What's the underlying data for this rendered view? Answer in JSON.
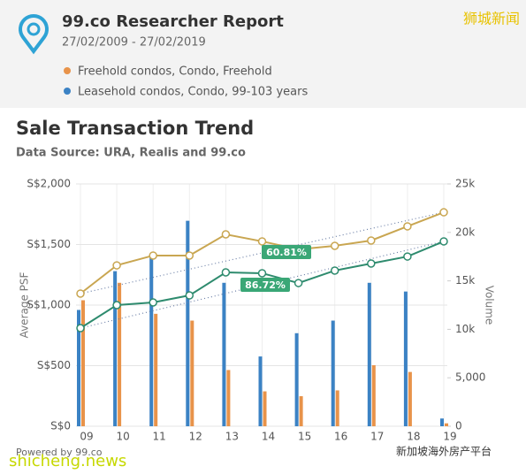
{
  "header": {
    "title": "99.co Researcher Report",
    "date_range": "27/02/2009 - 27/02/2019"
  },
  "watermark": "狮城新闻",
  "footer": {
    "powered_by": "Powered by 99.co",
    "site": "shicheng.news",
    "platform": "新加坡海外房产平台"
  },
  "chart_data": {
    "type": "bar_line",
    "title": "Sale Transaction Trend",
    "subtitle": "Data Source: URA, Realis and 99.co",
    "y_label": "Average PSF",
    "y2_label": "Volume",
    "categories": [
      "09",
      "10",
      "11",
      "12",
      "13",
      "14",
      "15",
      "16",
      "17",
      "18",
      "19"
    ],
    "series": [
      {
        "name": "Freehold condos, Condo, Freehold",
        "color": "#e8934a",
        "line_color": "#c9a651",
        "values": [
          1095,
          1328,
          1409,
          1409,
          1584,
          1526,
          1460,
          1489,
          1533,
          1650,
          1766
        ],
        "volume": [
          13000,
          14800,
          11600,
          10900,
          5800,
          3600,
          3100,
          3700,
          6300,
          5600,
          300
        ]
      },
      {
        "name": "Leasehold condos, Condo, 99-103 years",
        "color": "#3b82c4",
        "line_color": "#2e8b6e",
        "values": [
          810,
          1000,
          1022,
          1080,
          1270,
          1263,
          1182,
          1285,
          1343,
          1401,
          1526
        ],
        "volume": [
          12000,
          16000,
          17500,
          21200,
          14800,
          7200,
          9600,
          10900,
          14800,
          13900,
          800
        ]
      }
    ],
    "annotations": [
      "60.81%",
      "86.72%"
    ],
    "ylim": [
      0,
      2000
    ],
    "yticks": [
      {
        "value": 0,
        "label": "S$0"
      },
      {
        "value": 500,
        "label": "S$500"
      },
      {
        "value": 1000,
        "label": "S$1,000"
      },
      {
        "value": 1500,
        "label": "S$1,500"
      },
      {
        "value": 2000,
        "label": "S$2,000"
      }
    ],
    "y2lim": [
      0,
      25000
    ],
    "y2ticks": [
      0,
      {
        "value": 5000,
        "label": "5,000"
      },
      {
        "value": 10000,
        "label": "10k"
      },
      {
        "value": 15000,
        "label": "15k"
      },
      {
        "value": 20000,
        "label": "20k"
      },
      {
        "value": 25000,
        "label": "25k"
      }
    ],
    "grid": true
  }
}
